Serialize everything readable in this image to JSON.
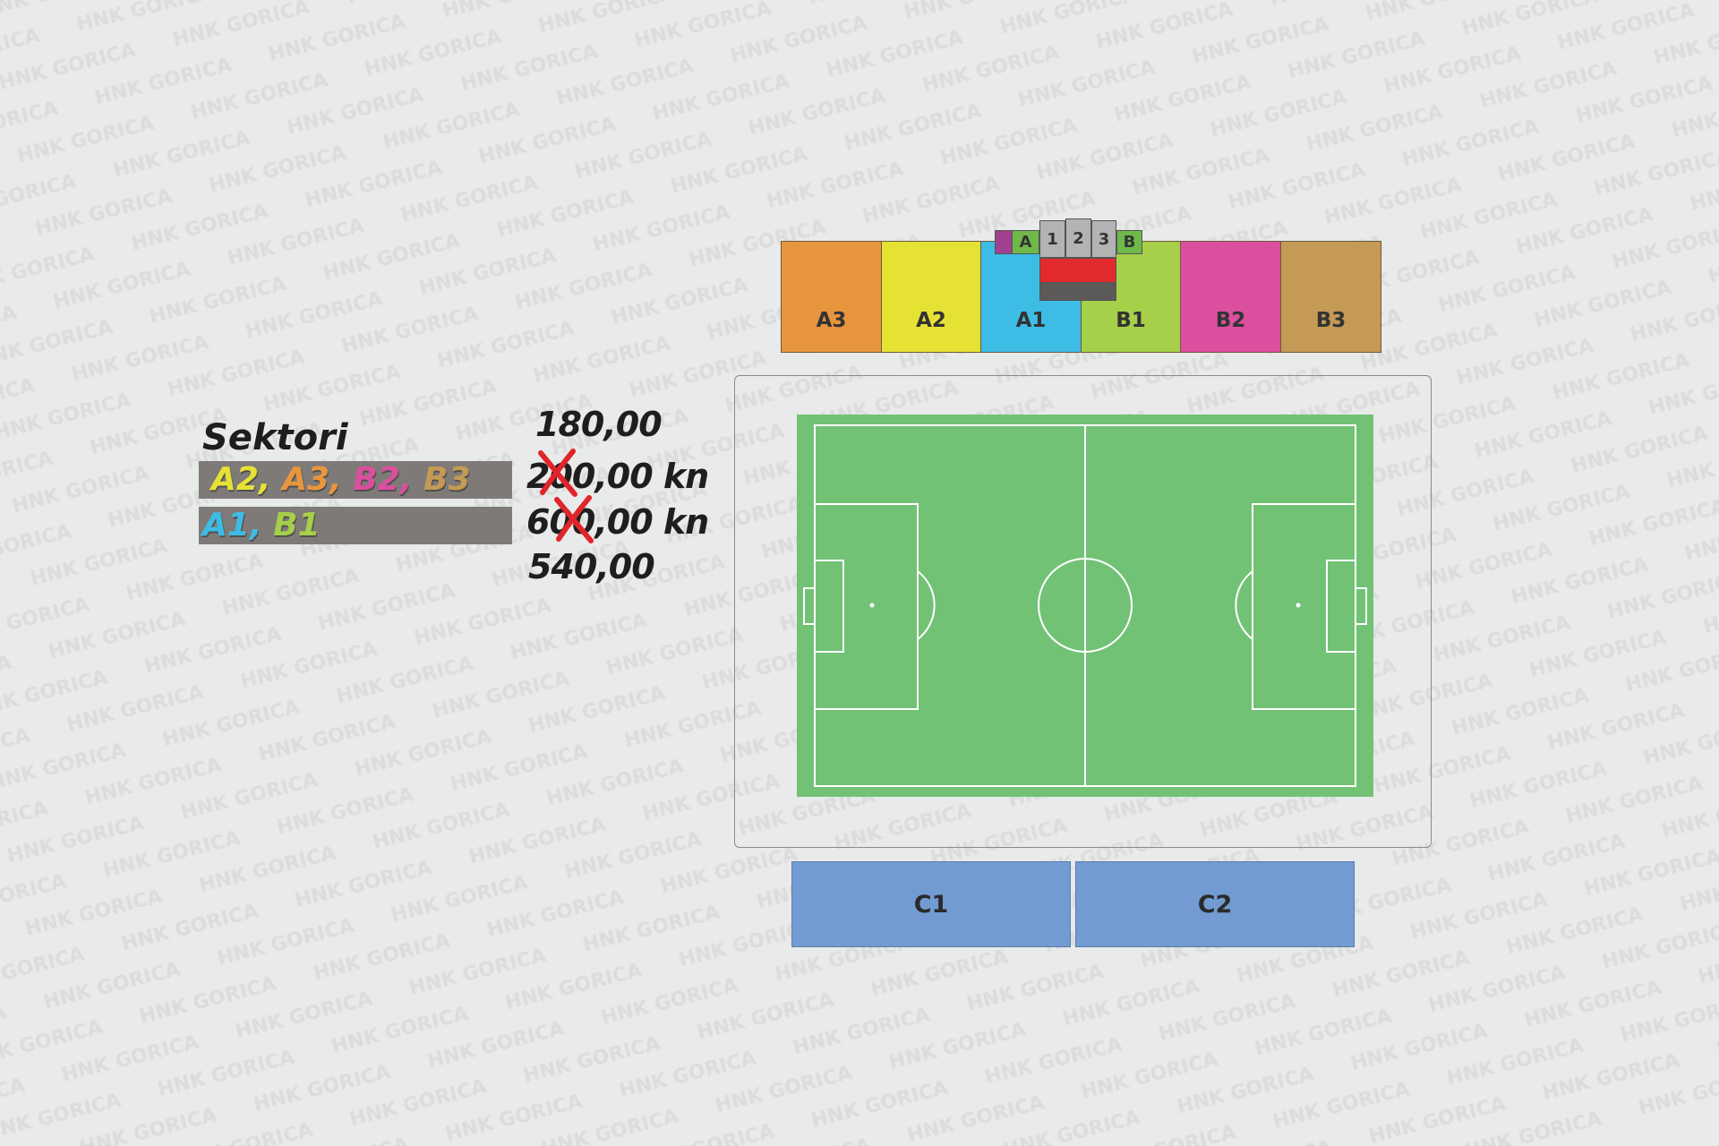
{
  "watermark": "HNK GORICA",
  "stands": {
    "north": [
      {
        "label": "A3",
        "color": "#e8963e"
      },
      {
        "label": "A2",
        "color": "#e6e234"
      },
      {
        "label": "A1",
        "color": "#3dbde6"
      },
      {
        "label": "B1",
        "color": "#a6cf4a"
      },
      {
        "label": "B2",
        "color": "#dc4f9e"
      },
      {
        "label": "B3",
        "color": "#c49a55"
      }
    ],
    "center_blocks": {
      "a": "A",
      "one": "1",
      "two": "2",
      "three": "3",
      "b": "B"
    },
    "south": [
      {
        "label": "C1",
        "color": "#729bd2"
      },
      {
        "label": "C2",
        "color": "#729bd2"
      }
    ]
  },
  "legend": {
    "title": "Sektori",
    "row1": [
      {
        "label": "A2,",
        "color": "#e6e234"
      },
      {
        "label": "A3,",
        "color": "#e8963e"
      },
      {
        "label": "B2,",
        "color": "#dc4f9e"
      },
      {
        "label": "B3",
        "color": "#c49a55"
      }
    ],
    "row2": [
      {
        "label": "A1,",
        "color": "#3dbde6"
      },
      {
        "label": "B1",
        "color": "#a6cf4a"
      }
    ]
  },
  "prices": {
    "row1_new": "180,00",
    "row1_old": "200,00 kn",
    "row2_old": "600,00 kn",
    "row2_new": "540,00"
  },
  "pitch_color": "#72c275"
}
